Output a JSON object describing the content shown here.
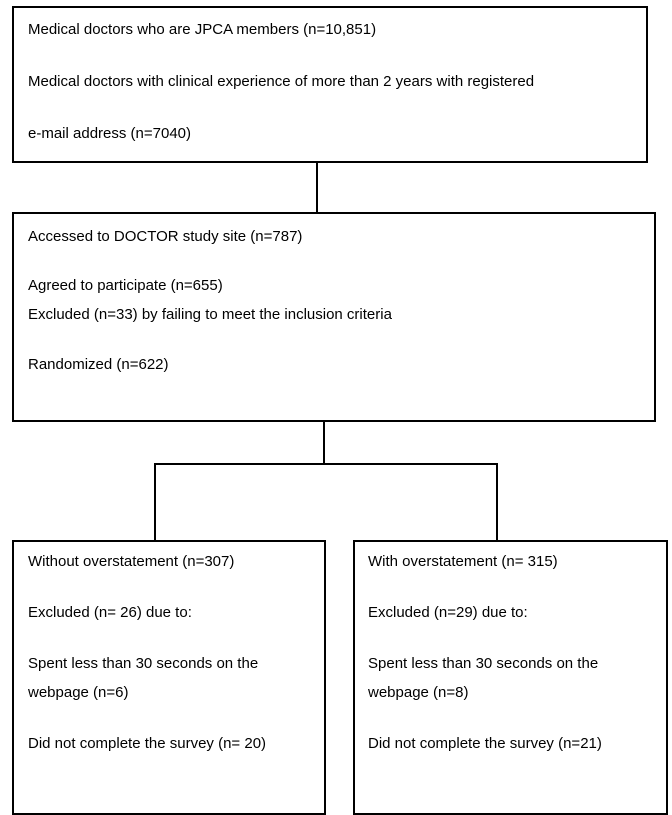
{
  "flowchart": {
    "box1": {
      "line1": "Medical doctors who are JPCA members (n=10,851)",
      "line2": "Medical doctors with clinical experience of more than 2 years with registered",
      "line3": "e-mail address (n=7040)"
    },
    "box2": {
      "line1": "Accessed to DOCTOR study site (n=787)",
      "line2": "Agreed to participate (n=655)",
      "line3": "Excluded (n=33) by failing to meet the inclusion criteria",
      "line4": "Randomized (n=622)"
    },
    "left": {
      "line1": "Without overstatement (n=307)",
      "line2": "Excluded (n= 26) due to:",
      "line3": "Spent less than 30 seconds on the",
      "line4": "webpage (n=6)",
      "line5": "Did not complete the survey (n= 20)"
    },
    "right": {
      "line1": "With overstatement (n= 315)",
      "line2": "Excluded (n=29) due to:",
      "line3": "Spent less than 30 seconds on the",
      "line4": "webpage (n=8)",
      "line5": "Did not complete the survey (n=21)"
    }
  }
}
